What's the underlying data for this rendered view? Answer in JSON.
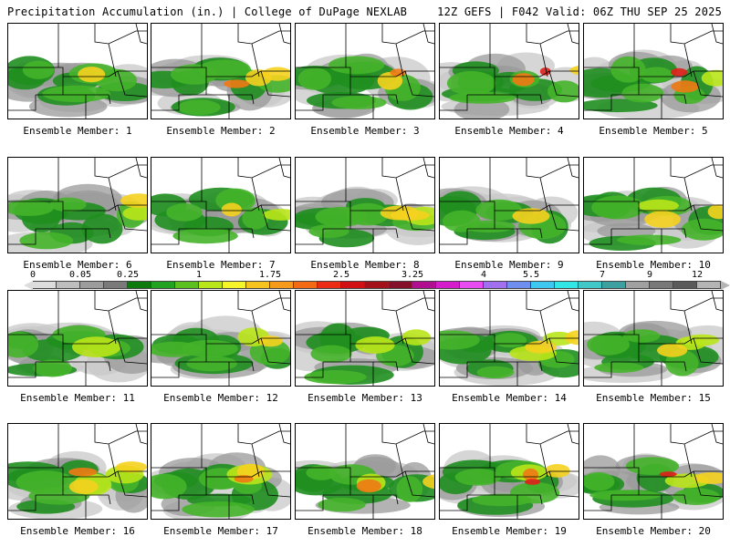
{
  "header": {
    "title_left": "Precipitation Accumulation (in.) | College of DuPage NEXLAB",
    "title_right": "12Z GEFS | F042 Valid: 06Z THU SEP 25 2025"
  },
  "colorbar": {
    "tick_labels": [
      "0",
      "0.05",
      "0.25",
      "1",
      "1.75",
      "2.5",
      "3.25",
      "4",
      "5.5",
      "7",
      "9",
      "12"
    ],
    "colors": [
      "#dcdcdc",
      "#bebebe",
      "#9c9c9c",
      "#7a7a7a",
      "#0c7a0c",
      "#21a321",
      "#5cc11f",
      "#b9e61a",
      "#f5f52a",
      "#f7c31f",
      "#f59a1a",
      "#f26a14",
      "#ec2b15",
      "#d01014",
      "#a4101a",
      "#84102a",
      "#b01090",
      "#d51ccb",
      "#e94cf0",
      "#a070f0",
      "#6e8ef0",
      "#3cc8f0",
      "#33e6e6",
      "#40c8c8",
      "#3ca0a0",
      "#a0a0a0",
      "#787878",
      "#5a5a5a",
      "#b4b4b4"
    ]
  },
  "members": [
    {
      "label": "Ensemble Member: 1"
    },
    {
      "label": "Ensemble Member: 2"
    },
    {
      "label": "Ensemble Member: 3"
    },
    {
      "label": "Ensemble Member: 4"
    },
    {
      "label": "Ensemble Member: 5"
    },
    {
      "label": "Ensemble Member: 6"
    },
    {
      "label": "Ensemble Member: 7"
    },
    {
      "label": "Ensemble Member: 8"
    },
    {
      "label": "Ensemble Member: 9"
    },
    {
      "label": "Ensemble Member: 10"
    },
    {
      "label": "Ensemble Member: 11"
    },
    {
      "label": "Ensemble Member: 12"
    },
    {
      "label": "Ensemble Member: 13"
    },
    {
      "label": "Ensemble Member: 14"
    },
    {
      "label": "Ensemble Member: 15"
    },
    {
      "label": "Ensemble Member: 16"
    },
    {
      "label": "Ensemble Member: 17"
    },
    {
      "label": "Ensemble Member: 18"
    },
    {
      "label": "Ensemble Member: 19"
    },
    {
      "label": "Ensemble Member: 20"
    }
  ]
}
